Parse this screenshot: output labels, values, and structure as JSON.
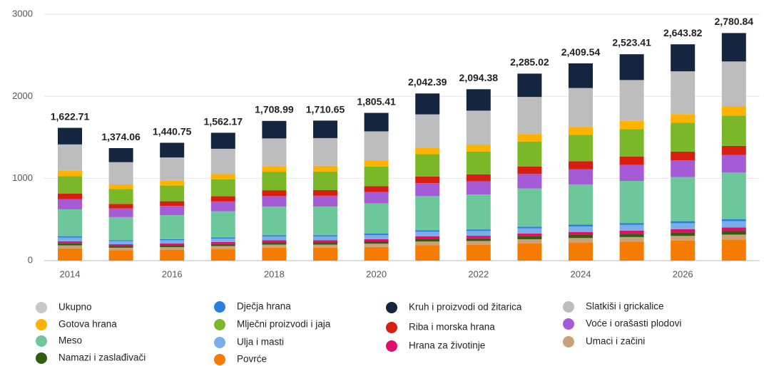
{
  "chart_data": {
    "type": "stacked_bar",
    "categories": [
      "2014",
      null,
      "2016",
      null,
      "2018",
      null,
      "2020",
      null,
      "2022",
      null,
      "2024",
      null,
      "2026",
      null
    ],
    "ylim": [
      0,
      3000
    ],
    "yticks": [
      0,
      1000,
      2000,
      3000
    ],
    "grid": true,
    "totals": {
      "name": "Ukupno",
      "color": "#c8c8c8",
      "values": [
        1622.71,
        1374.06,
        1440.75,
        1562.17,
        1708.99,
        1710.65,
        1805.41,
        2042.39,
        2094.38,
        2285.02,
        2409.54,
        2523.41,
        2643.82,
        2780.84
      ],
      "value_labels": [
        "1,622.71",
        "1,374.06",
        "1,440.75",
        "1,562.17",
        "1,708.99",
        "1,710.65",
        "1,805.41",
        "2,042.39",
        "2,094.38",
        "2,285.02",
        "2,409.54",
        "2,523.41",
        "2,643.82",
        "2,780.84"
      ]
    },
    "series": [
      {
        "name": "Povrće",
        "color": "#f57c00",
        "values": [
          150,
          127,
          133,
          144,
          158,
          158,
          167,
          189,
          194,
          211,
          223,
          233,
          244,
          257
        ]
      },
      {
        "name": "Umaci i začini",
        "color": "#c8a27a",
        "values": [
          35,
          30,
          31,
          34,
          37,
          37,
          39,
          44,
          45,
          49,
          52,
          54,
          57,
          60
        ]
      },
      {
        "name": "Namazi i zaslađivači",
        "color": "#2e5e0e",
        "values": [
          25,
          21,
          22,
          24,
          26,
          26,
          28,
          31,
          32,
          35,
          37,
          39,
          41,
          43
        ]
      },
      {
        "name": "Hrana za životinje",
        "color": "#e0106a",
        "values": [
          25,
          21,
          22,
          24,
          26,
          26,
          28,
          31,
          32,
          35,
          37,
          39,
          41,
          43
        ]
      },
      {
        "name": "Ulja i masti",
        "color": "#7aaee8",
        "values": [
          45,
          38,
          40,
          43,
          47,
          47,
          50,
          57,
          58,
          63,
          67,
          70,
          73,
          77
        ]
      },
      {
        "name": "Dječja hrana",
        "color": "#2b7de0",
        "values": [
          15,
          13,
          13,
          14,
          16,
          16,
          17,
          19,
          19,
          21,
          22,
          23,
          24,
          26
        ]
      },
      {
        "name": "Meso",
        "color": "#6cc79a",
        "values": [
          330,
          280,
          293,
          318,
          347,
          348,
          367,
          415,
          426,
          465,
          490,
          513,
          538,
          566
        ]
      },
      {
        "name": "Voće i orašasti plodovi",
        "color": "#a55ad6",
        "values": [
          125,
          106,
          111,
          120,
          132,
          132,
          139,
          157,
          161,
          176,
          186,
          194,
          204,
          214
        ]
      },
      {
        "name": "Riba i morska hrana",
        "color": "#d81e10",
        "values": [
          65,
          55,
          58,
          63,
          68,
          69,
          72,
          82,
          84,
          92,
          97,
          101,
          106,
          111
        ]
      },
      {
        "name": "Mlječni proizvodi i jaja",
        "color": "#7ab82a",
        "values": [
          215,
          182,
          191,
          207,
          226,
          227,
          239,
          271,
          278,
          303,
          319,
          334,
          350,
          369
        ]
      },
      {
        "name": "Gotova hrana",
        "color": "#ffb300",
        "values": [
          65,
          55,
          58,
          63,
          68,
          69,
          72,
          82,
          84,
          92,
          97,
          101,
          106,
          111
        ]
      },
      {
        "name": "Slatkiši i grickalice",
        "color": "#bdbdbd",
        "values": [
          320,
          271,
          284,
          308,
          337,
          337,
          356,
          403,
          413,
          451,
          475,
          498,
          521,
          548
        ]
      },
      {
        "name": "Kruh i proizvodi od žitarica",
        "color": "#13253f",
        "values": [
          202,
          171,
          179,
          195,
          213,
          213,
          225,
          254,
          261,
          284,
          300,
          314,
          329,
          346
        ]
      }
    ]
  }
}
